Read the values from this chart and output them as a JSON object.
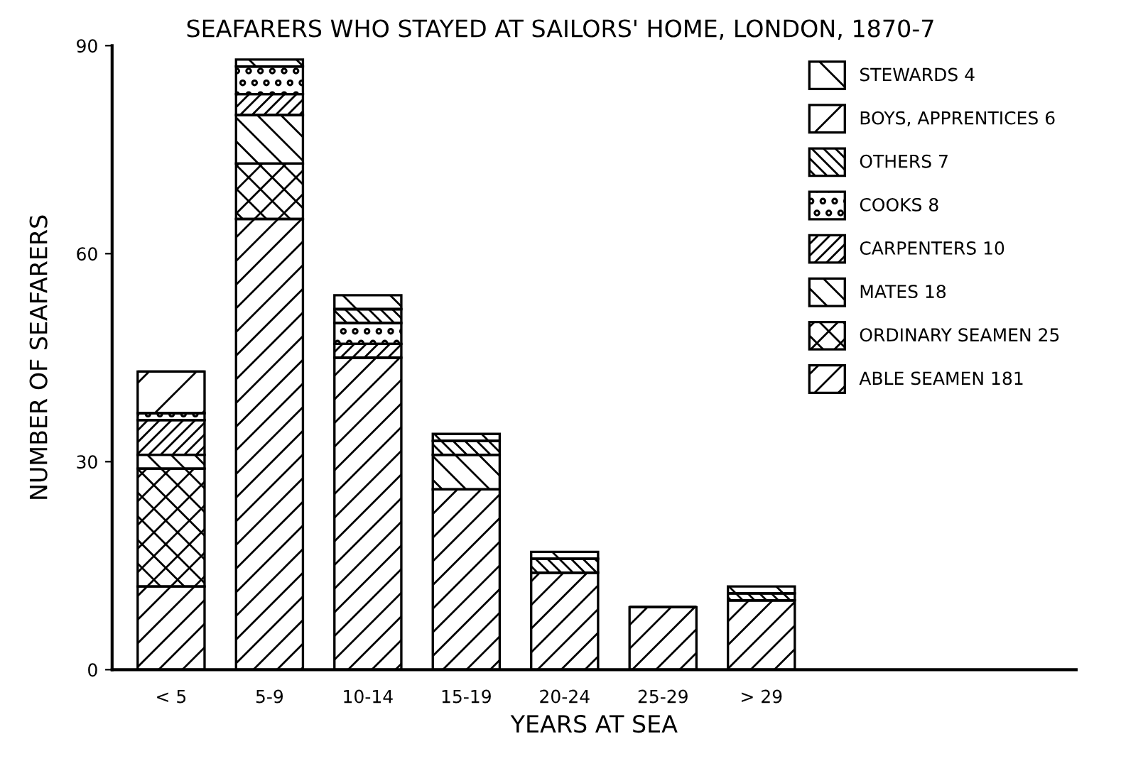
{
  "chart_data": {
    "type": "bar",
    "title": "SEAFARERS WHO STAYED AT SAILORS' HOME, LONDON, 1870-7",
    "xlabel": "YEARS AT SEA",
    "ylabel": "NUMBER OF SEAFARERS",
    "categories": [
      "< 5",
      "5-9",
      "10-14",
      "15-19",
      "20-24",
      "25-29",
      "> 29"
    ],
    "stacked": true,
    "ylim": [
      0,
      90
    ],
    "yticks": [
      0,
      30,
      60,
      90
    ],
    "grid": false,
    "legend": "top right",
    "series": [
      {
        "name": "ABLE SEAMEN 181",
        "color": "#000000",
        "values": [
          12,
          65,
          45,
          26,
          14,
          9,
          10
        ]
      },
      {
        "name": "ORDINARY SEAMEN 25",
        "color": "#000000",
        "values": [
          17,
          8,
          0,
          0,
          0,
          0,
          0
        ]
      },
      {
        "name": "MATES 18",
        "color": "#000000",
        "values": [
          2,
          7,
          0,
          5,
          0,
          0,
          0
        ]
      },
      {
        "name": "CARPENTERS 10",
        "color": "#000000",
        "values": [
          5,
          3,
          2,
          0,
          0,
          0,
          0
        ]
      },
      {
        "name": "COOKS 8",
        "color": "#000000",
        "values": [
          1,
          4,
          3,
          0,
          0,
          0,
          0
        ]
      },
      {
        "name": "OTHERS 7",
        "color": "#000000",
        "values": [
          0,
          0,
          2,
          2,
          2,
          0,
          1
        ]
      },
      {
        "name": "BOYS, APPRENTICES 6",
        "color": "#000000",
        "values": [
          6,
          0,
          0,
          0,
          0,
          0,
          0
        ]
      },
      {
        "name": "STEWARDS 4",
        "color": "#000000",
        "values": [
          0,
          1,
          2,
          1,
          1,
          0,
          1
        ]
      }
    ]
  }
}
